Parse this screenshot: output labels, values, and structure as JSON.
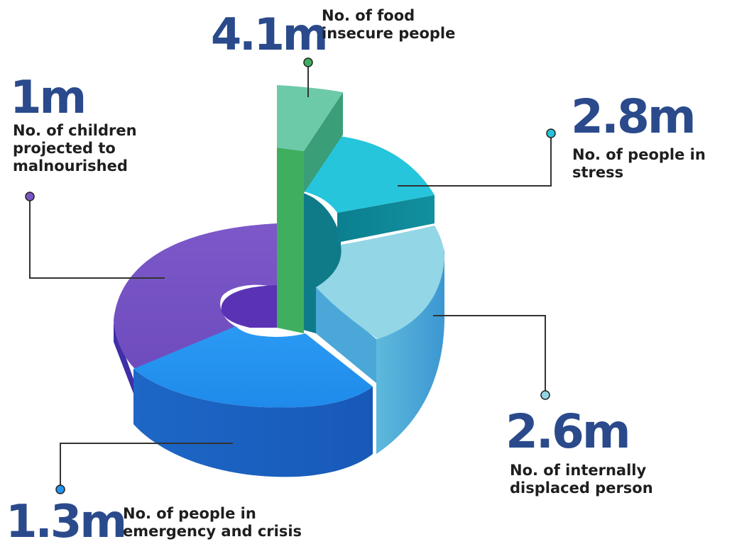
{
  "chart_data": {
    "type": "pie",
    "style": "3d-donut-exploded",
    "series": [
      {
        "key": "food",
        "value_label": "4.1m",
        "value": 4.1,
        "label": "No. of food insecure people",
        "color": "#3fae60"
      },
      {
        "key": "stress",
        "value_label": "2.8m",
        "value": 2.8,
        "label": "No. of people in stress",
        "color": "#26c4dc"
      },
      {
        "key": "displaced",
        "value_label": "2.6m",
        "value": 2.6,
        "label": "No. of internally displaced person",
        "color": "#92d6e6"
      },
      {
        "key": "emergency",
        "value_label": "1.3m",
        "value": 1.3,
        "label": "No. of people in emergency and crisis",
        "color": "#2295f0"
      },
      {
        "key": "children",
        "value_label": "1m",
        "value": 1.0,
        "label": "No. of children projected to malnourished",
        "color": "#7b55c4"
      }
    ]
  },
  "labels": {
    "food": {
      "value": "4.1m",
      "line1": "No. of food",
      "line2": "insecure people"
    },
    "stress": {
      "value": "2.8m",
      "line1": "No. of people in",
      "line2": "stress"
    },
    "displaced": {
      "value": "2.6m",
      "line1": "No. of internally",
      "line2": "displaced person"
    },
    "emergency": {
      "value": "1.3m",
      "line1": "No. of people in",
      "line2": "emergency and crisis"
    },
    "children": {
      "value": "1m",
      "line1": "No. of children",
      "line2": "projected to",
      "line3": "malnourished"
    }
  }
}
